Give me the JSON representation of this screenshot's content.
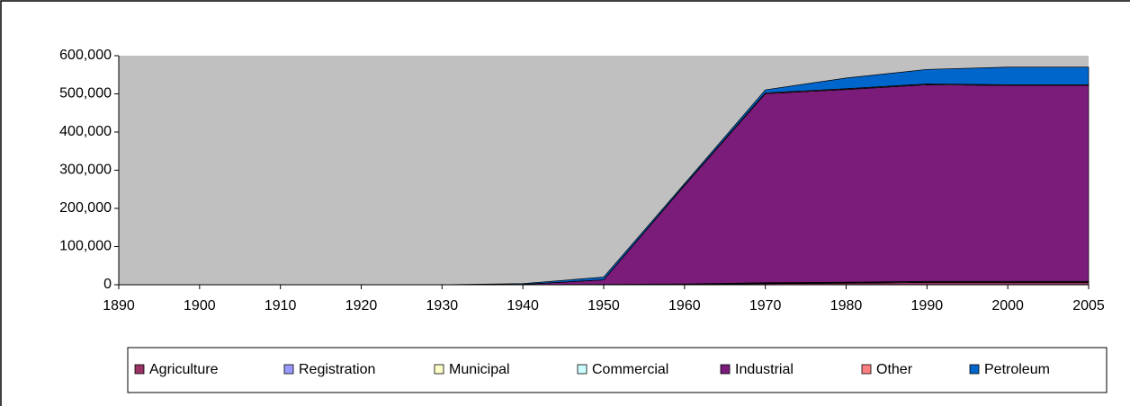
{
  "chart_data": {
    "type": "stacked_area",
    "categories": [
      "1890",
      "1900",
      "1910",
      "1920",
      "1930",
      "1940",
      "1950",
      "1960",
      "1970",
      "1980",
      "1990",
      "2000",
      "2005"
    ],
    "series": [
      {
        "name": "Agriculture",
        "color": "#993366",
        "values": [
          0,
          0,
          0,
          0,
          0,
          0,
          500,
          1000,
          3000,
          4000,
          6000,
          6000,
          6000
        ]
      },
      {
        "name": "Registration",
        "color": "#9999FF",
        "values": [
          0,
          0,
          0,
          0,
          0,
          0,
          0,
          0,
          500,
          500,
          500,
          500,
          500
        ]
      },
      {
        "name": "Municipal",
        "color": "#FFFFCC",
        "values": [
          0,
          0,
          0,
          0,
          0,
          0,
          500,
          1000,
          1500,
          1500,
          2000,
          2000,
          2000
        ]
      },
      {
        "name": "Commercial",
        "color": "#CCFFFF",
        "values": [
          0,
          0,
          0,
          0,
          0,
          0,
          0,
          0,
          500,
          500,
          500,
          500,
          500
        ]
      },
      {
        "name": "Industrial",
        "color": "#7B1C7B",
        "values": [
          0,
          0,
          0,
          0,
          0,
          1000,
          12000,
          258000,
          495000,
          505000,
          515000,
          513000,
          513000
        ]
      },
      {
        "name": "Other",
        "color": "#FF8080",
        "values": [
          0,
          0,
          0,
          0,
          0,
          0,
          0,
          1000,
          2000,
          2000,
          2000,
          2000,
          2000
        ]
      },
      {
        "name": "Petroleum",
        "color": "#0066CC",
        "values": [
          0,
          0,
          0,
          0,
          0,
          2000,
          7000,
          4000,
          8000,
          28000,
          38000,
          46000,
          46000
        ]
      }
    ],
    "ylim": [
      0,
      600000
    ],
    "yticks": [
      0,
      {
        "value": 100000,
        "label": "100,000"
      },
      {
        "value": 200000,
        "label": "200,000"
      },
      {
        "value": 300000,
        "label": "300,000"
      },
      {
        "value": 400000,
        "label": "400,000"
      },
      {
        "value": 500000,
        "label": "500,000"
      },
      {
        "value": 600000,
        "label": "600,000"
      }
    ],
    "plot_background": "#C0C0C0",
    "legend": "bottom"
  }
}
